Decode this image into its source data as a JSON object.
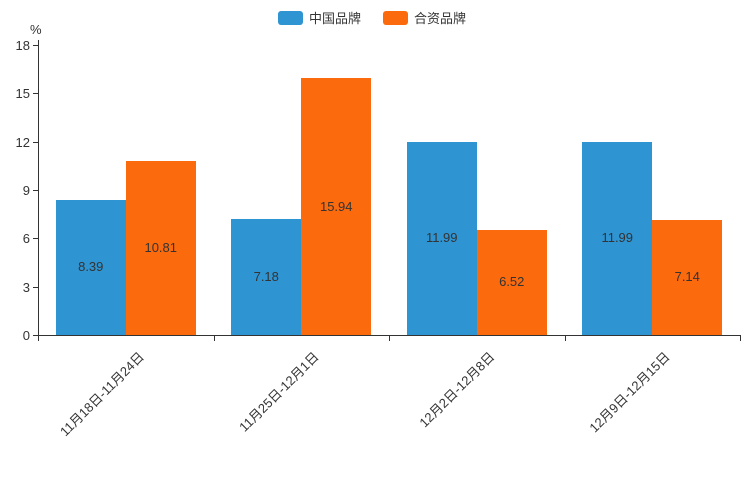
{
  "chart_data": {
    "type": "bar",
    "title": "",
    "categories": [
      "11月18日-11月24日",
      "11月25日-12月1日",
      "12月2日-12月8日",
      "12月9日-12月15日"
    ],
    "series": [
      {
        "name": "中国品牌",
        "color": "#2F94D2",
        "values": [
          8.39,
          7.18,
          11.99,
          11.99
        ]
      },
      {
        "name": "合资品牌",
        "color": "#FB6A0C",
        "values": [
          10.81,
          15.94,
          6.52,
          7.14
        ]
      }
    ],
    "xlabel": "",
    "ylabel": "%",
    "ylim": [
      0,
      18
    ],
    "yticks": [
      0,
      3,
      6,
      9,
      12,
      15,
      18
    ],
    "grid": false,
    "legend_position": "top",
    "value_labels": "inside-center",
    "xtick_rotation": -45
  },
  "colors": {
    "axis": "#333333",
    "text": "#333333",
    "background": "#ffffff"
  }
}
